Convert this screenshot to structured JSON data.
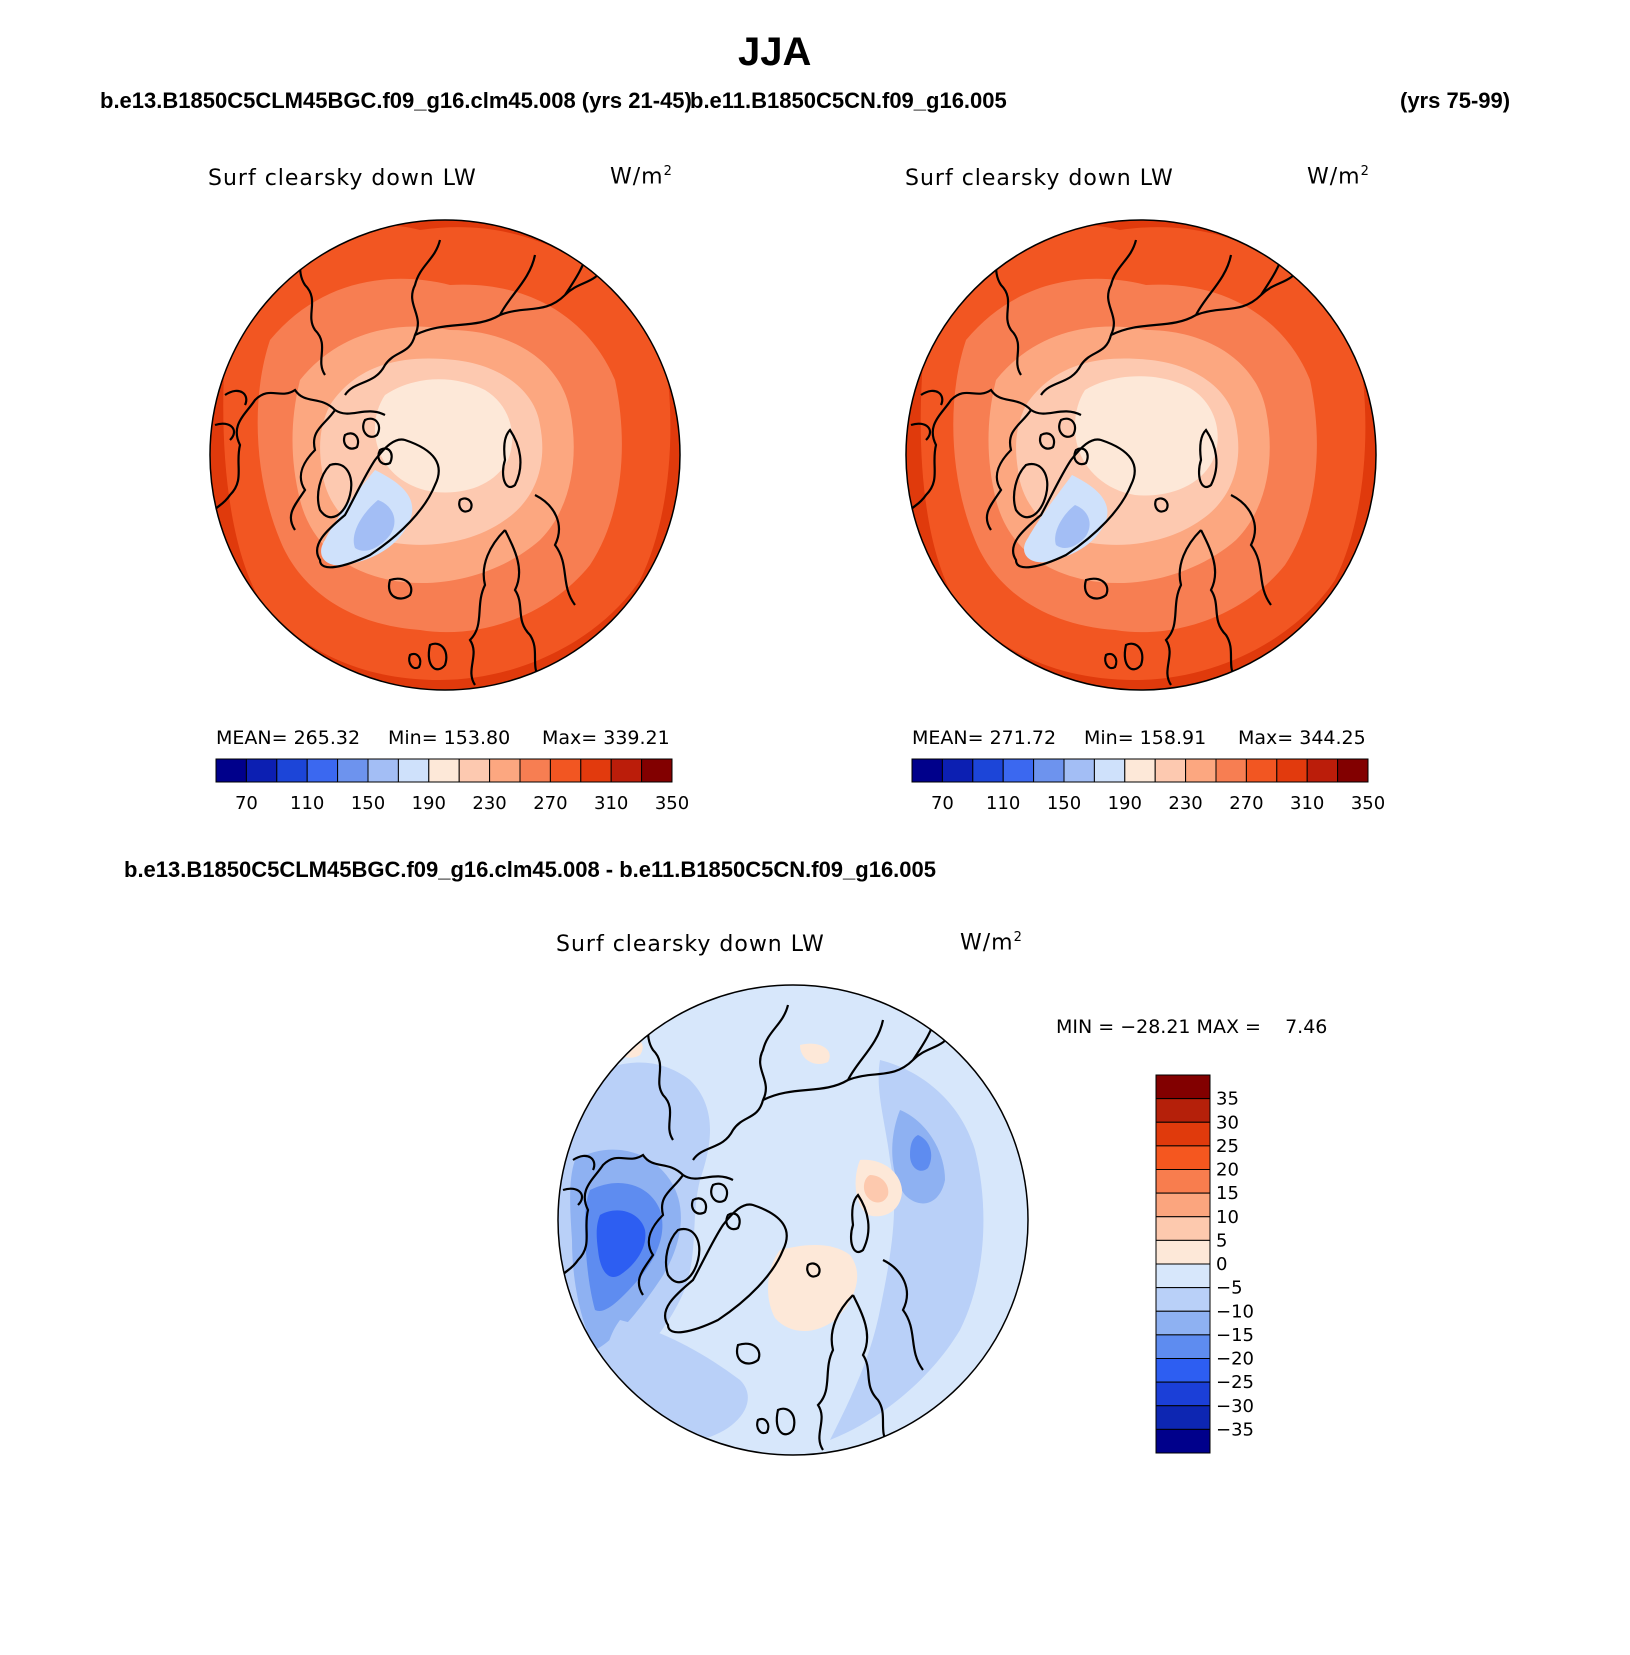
{
  "title": "JJA",
  "header": {
    "case_left": "b.e13.B1850C5CLM45BGC.f09_g16.clm45.008 (yrs 21-45)",
    "case_right": "b.e11.B1850C5CN.f09_g16.005",
    "years_right": "(yrs 75-99)",
    "diff_title": "b.e13.B1850C5CLM45BGC.f09_g16.clm45.008 - b.e11.B1850C5CN.f09_g16.005"
  },
  "panels": [
    {
      "name": "model",
      "variable": "Surf clearsky down LW",
      "units": "W/m",
      "units_exp": "2",
      "mean_text": "MEAN= 265.32",
      "min_text": "Min= 153.80",
      "max_text": "Max= 339.21"
    },
    {
      "name": "control",
      "variable": "Surf clearsky down LW",
      "units": "W/m",
      "units_exp": "2",
      "mean_text": "MEAN= 271.72",
      "min_text": "Min= 158.91",
      "max_text": "Max= 344.25"
    }
  ],
  "diff_panel": {
    "variable": "Surf clearsky down LW",
    "units": "W/m",
    "units_exp": "2",
    "minmax_text": "MIN = −28.21 MAX =    7.46"
  },
  "colorbar_abs": {
    "colors": [
      "#00008b",
      "#0c1fb2",
      "#1c45d8",
      "#3b68f0",
      "#6d93ee",
      "#a3bef5",
      "#cfe1fb",
      "#fde8d8",
      "#fdc9b0",
      "#fca780",
      "#f77e52",
      "#f25622",
      "#e23a0d",
      "#bb1d0a",
      "#820000"
    ],
    "ticks": [
      "70",
      "110",
      "150",
      "190",
      "230",
      "270",
      "310",
      "350"
    ]
  },
  "colorbar_diff": {
    "colors": [
      "#820000",
      "#b5200a",
      "#e03a0c",
      "#f5571f",
      "#f87d4e",
      "#fba57e",
      "#fdc9ae",
      "#fde8d8",
      "#d7e7fb",
      "#b9d0f8",
      "#8eb1f2",
      "#5e8cf0",
      "#2d5ef2",
      "#1b3fd8",
      "#0d26b2",
      "#00008b"
    ],
    "ticks": [
      "35",
      "30",
      "25",
      "20",
      "15",
      "10",
      "5",
      "0",
      "−5",
      "−10",
      "−15",
      "−20",
      "−25",
      "−30",
      "−35"
    ]
  },
  "legend_note": "Lambert polar stereographic, 45°N–90°N"
}
